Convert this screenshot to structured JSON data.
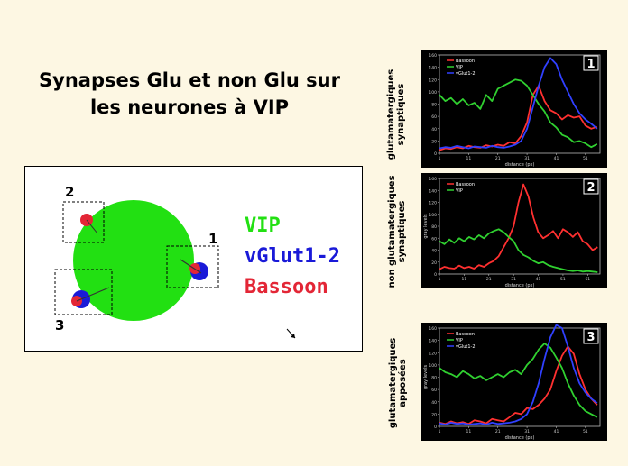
{
  "title_lines": [
    "Synapses Glu et non Glu sur",
    "les neurones à VIP"
  ],
  "legend": {
    "vip": "VIP",
    "vip_color": "#22e012",
    "vglut": "vGlut1-2",
    "vglut_color": "#1a1ad8",
    "bassoon": "Bassoon",
    "bassoon_color": "#e32636"
  },
  "schema_labels": {
    "s1": "1",
    "s2": "2",
    "s3": "3"
  },
  "side_labels": {
    "c1": [
      "glutamatergiques",
      "synaptiques"
    ],
    "c2": [
      "non glutamatergiques",
      "synaptiques"
    ],
    "c3": [
      "glutamatergiques",
      "apposées"
    ]
  },
  "chart_data": [
    {
      "type": "line",
      "panel_number": "1",
      "xlabel": "distance (px)",
      "ylabel": "",
      "xticks": [
        1,
        11,
        21,
        31,
        41,
        51
      ],
      "yticks": [
        0,
        20,
        40,
        60,
        80,
        100,
        120,
        140,
        160
      ],
      "xlim": [
        1,
        56
      ],
      "ylim": [
        0,
        160
      ],
      "series": [
        {
          "name": "Bassoon",
          "color": "#ff3030",
          "x": [
            1,
            3,
            5,
            7,
            9,
            11,
            13,
            15,
            17,
            19,
            21,
            23,
            25,
            27,
            29,
            31,
            33,
            35,
            37,
            39,
            41,
            43,
            45,
            47,
            49,
            51,
            53,
            55
          ],
          "y": [
            5,
            8,
            7,
            10,
            8,
            12,
            10,
            9,
            13,
            11,
            14,
            12,
            18,
            16,
            28,
            50,
            95,
            110,
            85,
            70,
            65,
            55,
            62,
            58,
            60,
            45,
            40,
            43
          ]
        },
        {
          "name": "VIP",
          "color": "#30d030",
          "x": [
            1,
            3,
            5,
            7,
            9,
            11,
            13,
            15,
            17,
            19,
            21,
            23,
            25,
            27,
            29,
            31,
            33,
            35,
            37,
            39,
            41,
            43,
            45,
            47,
            49,
            51,
            53,
            55
          ],
          "y": [
            95,
            85,
            90,
            80,
            88,
            78,
            82,
            72,
            95,
            85,
            105,
            110,
            115,
            120,
            118,
            110,
            95,
            80,
            68,
            50,
            42,
            30,
            26,
            18,
            20,
            16,
            10,
            15
          ]
        },
        {
          "name": "vGlut1-2",
          "color": "#3040ff",
          "x": [
            1,
            3,
            5,
            7,
            9,
            11,
            13,
            15,
            17,
            19,
            21,
            23,
            25,
            27,
            29,
            31,
            33,
            35,
            37,
            39,
            41,
            43,
            45,
            47,
            49,
            51,
            53,
            55
          ],
          "y": [
            8,
            10,
            9,
            12,
            10,
            8,
            11,
            10,
            9,
            12,
            10,
            9,
            11,
            14,
            20,
            40,
            75,
            110,
            140,
            155,
            145,
            120,
            100,
            80,
            65,
            55,
            48,
            40
          ]
        }
      ]
    },
    {
      "type": "line",
      "panel_number": "2",
      "xlabel": "distance (px)",
      "ylabel": "gray levels",
      "xticks": [
        1,
        11,
        21,
        31,
        41,
        51,
        61
      ],
      "yticks": [
        0,
        20,
        40,
        60,
        80,
        100,
        120,
        140,
        160
      ],
      "xlim": [
        1,
        66
      ],
      "ylim": [
        0,
        160
      ],
      "series": [
        {
          "name": "Bassoon",
          "color": "#ff3030",
          "x": [
            1,
            3,
            5,
            7,
            9,
            11,
            13,
            15,
            17,
            19,
            21,
            23,
            25,
            27,
            29,
            31,
            33,
            35,
            37,
            39,
            41,
            43,
            45,
            47,
            49,
            51,
            53,
            55,
            57,
            59,
            61,
            63,
            65
          ],
          "y": [
            8,
            12,
            10,
            9,
            14,
            10,
            12,
            9,
            15,
            12,
            18,
            22,
            30,
            45,
            60,
            80,
            120,
            150,
            130,
            95,
            70,
            60,
            65,
            72,
            60,
            75,
            70,
            62,
            70,
            55,
            50,
            40,
            45
          ]
        },
        {
          "name": "VIP",
          "color": "#30d030",
          "x": [
            1,
            3,
            5,
            7,
            9,
            11,
            13,
            15,
            17,
            19,
            21,
            23,
            25,
            27,
            29,
            31,
            33,
            35,
            37,
            39,
            41,
            43,
            45,
            47,
            49,
            51,
            53,
            55,
            57,
            59,
            61,
            63,
            65
          ],
          "y": [
            55,
            50,
            58,
            52,
            60,
            55,
            62,
            58,
            65,
            60,
            68,
            72,
            75,
            70,
            62,
            55,
            40,
            32,
            28,
            22,
            18,
            20,
            15,
            12,
            10,
            8,
            6,
            5,
            6,
            4,
            5,
            4,
            3
          ]
        }
      ]
    },
    {
      "type": "line",
      "panel_number": "3",
      "xlabel": "distance (px)",
      "ylabel": "gray levels",
      "xticks": [
        1,
        11,
        21,
        31,
        41,
        51
      ],
      "yticks": [
        0,
        20,
        40,
        60,
        80,
        100,
        120,
        140,
        160
      ],
      "xlim": [
        1,
        56
      ],
      "ylim": [
        0,
        160
      ],
      "series": [
        {
          "name": "Bassoon",
          "color": "#ff3030",
          "x": [
            1,
            3,
            5,
            7,
            9,
            11,
            13,
            15,
            17,
            19,
            21,
            23,
            25,
            27,
            29,
            31,
            33,
            35,
            37,
            39,
            41,
            43,
            45,
            47,
            49,
            51,
            53,
            55
          ],
          "y": [
            6,
            4,
            8,
            5,
            7,
            4,
            10,
            8,
            5,
            12,
            10,
            8,
            15,
            22,
            20,
            30,
            28,
            35,
            45,
            60,
            90,
            115,
            130,
            118,
            85,
            60,
            45,
            35
          ]
        },
        {
          "name": "VIP",
          "color": "#30d030",
          "x": [
            1,
            3,
            5,
            7,
            9,
            11,
            13,
            15,
            17,
            19,
            21,
            23,
            25,
            27,
            29,
            31,
            33,
            35,
            37,
            39,
            41,
            43,
            45,
            47,
            49,
            51,
            53,
            55
          ],
          "y": [
            95,
            88,
            85,
            80,
            90,
            85,
            78,
            82,
            75,
            80,
            85,
            80,
            88,
            92,
            85,
            100,
            110,
            125,
            135,
            128,
            112,
            95,
            70,
            50,
            35,
            25,
            20,
            15
          ]
        },
        {
          "name": "vGlut1-2",
          "color": "#3040ff",
          "x": [
            1,
            3,
            5,
            7,
            9,
            11,
            13,
            15,
            17,
            19,
            21,
            23,
            25,
            27,
            29,
            31,
            33,
            35,
            37,
            39,
            41,
            43,
            45,
            47,
            49,
            51,
            53,
            55
          ],
          "y": [
            5,
            3,
            6,
            4,
            5,
            3,
            4,
            5,
            3,
            6,
            4,
            5,
            6,
            8,
            12,
            20,
            40,
            70,
            110,
            145,
            165,
            160,
            130,
            95,
            70,
            55,
            45,
            38
          ]
        }
      ]
    }
  ]
}
